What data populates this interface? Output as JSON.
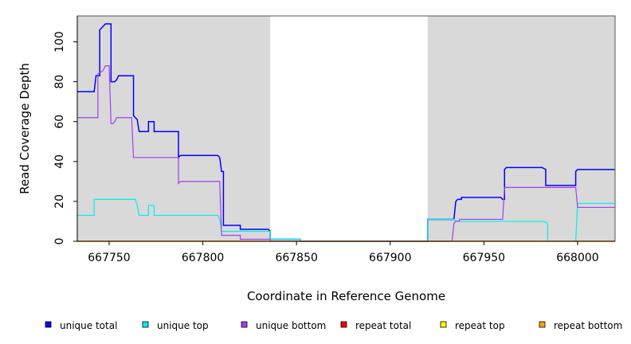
{
  "chart_data": {
    "type": "line",
    "xlabel": "Coordinate in Reference Genome",
    "ylabel": "Read Coverage Depth",
    "xlim": [
      667733,
      668020
    ],
    "ylim": [
      0,
      113
    ],
    "x_ticks": [
      667750,
      667800,
      667850,
      667900,
      667950,
      668000
    ],
    "y_ticks": [
      0,
      20,
      40,
      60,
      80,
      100
    ],
    "shaded_regions": [
      [
        667733,
        667836
      ],
      [
        667920,
        668020
      ]
    ],
    "grid": false,
    "legend_position": "bottom",
    "series": [
      {
        "name": "unique total",
        "color": "#0000ff",
        "points": [
          [
            667733,
            75
          ],
          [
            667742,
            75
          ],
          [
            667743,
            83
          ],
          [
            667745,
            83
          ],
          [
            667745,
            106
          ],
          [
            667746,
            107
          ],
          [
            667747,
            108
          ],
          [
            667748,
            109
          ],
          [
            667751,
            109
          ],
          [
            667751,
            80
          ],
          [
            667753,
            80
          ],
          [
            667754,
            81
          ],
          [
            667755,
            83
          ],
          [
            667763,
            83
          ],
          [
            667763,
            63
          ],
          [
            667765,
            61
          ],
          [
            667766,
            55
          ],
          [
            667771,
            55
          ],
          [
            667771,
            60
          ],
          [
            667774,
            60
          ],
          [
            667774,
            55
          ],
          [
            667787,
            55
          ],
          [
            667787,
            42
          ],
          [
            667788,
            43
          ],
          [
            667808,
            43
          ],
          [
            667809,
            42
          ],
          [
            667810,
            35
          ],
          [
            667811,
            35
          ],
          [
            667811,
            8
          ],
          [
            667820,
            8
          ],
          [
            667820,
            6
          ],
          [
            667835,
            6
          ],
          [
            667836,
            5
          ],
          [
            667836,
            1
          ],
          [
            667852,
            1
          ],
          [
            667852,
            0
          ],
          [
            667920,
            0
          ],
          [
            667920,
            11
          ],
          [
            667934,
            11
          ],
          [
            667935,
            20
          ],
          [
            667936,
            21
          ],
          [
            667938,
            21
          ],
          [
            667938,
            22
          ],
          [
            667959,
            22
          ],
          [
            667960,
            21
          ],
          [
            667961,
            21
          ],
          [
            667961,
            36
          ],
          [
            667962,
            37
          ],
          [
            667981,
            37
          ],
          [
            667983,
            36
          ],
          [
            667983,
            28
          ],
          [
            667999,
            28
          ],
          [
            667999,
            35
          ],
          [
            668000,
            36
          ],
          [
            668020,
            36
          ]
        ]
      },
      {
        "name": "unique top",
        "color": "#00eeee",
        "points": [
          [
            667733,
            13
          ],
          [
            667742,
            13
          ],
          [
            667742,
            21
          ],
          [
            667764,
            21
          ],
          [
            667765,
            18
          ],
          [
            667766,
            13
          ],
          [
            667771,
            13
          ],
          [
            667771,
            18
          ],
          [
            667774,
            18
          ],
          [
            667774,
            13
          ],
          [
            667808,
            13
          ],
          [
            667809,
            11
          ],
          [
            667810,
            5
          ],
          [
            667836,
            5
          ],
          [
            667836,
            1
          ],
          [
            667852,
            1
          ],
          [
            667852,
            0
          ],
          [
            667920,
            0
          ],
          [
            667920,
            11
          ],
          [
            667934,
            11
          ],
          [
            667935,
            10
          ],
          [
            667982,
            10
          ],
          [
            667984,
            9
          ],
          [
            667984,
            0
          ],
          [
            667999,
            0
          ],
          [
            668000,
            19
          ],
          [
            668020,
            19
          ]
        ]
      },
      {
        "name": "unique bottom",
        "color": "#a040f0",
        "points": [
          [
            667733,
            62
          ],
          [
            667744,
            62
          ],
          [
            667744,
            84
          ],
          [
            667746,
            85
          ],
          [
            667747,
            86
          ],
          [
            667748,
            88
          ],
          [
            667750,
            88
          ],
          [
            667751,
            59
          ],
          [
            667752,
            59
          ],
          [
            667753,
            60
          ],
          [
            667754,
            62
          ],
          [
            667762,
            62
          ],
          [
            667763,
            42
          ],
          [
            667787,
            42
          ],
          [
            667787,
            29
          ],
          [
            667788,
            30
          ],
          [
            667809,
            30
          ],
          [
            667810,
            3
          ],
          [
            667820,
            3
          ],
          [
            667820,
            1
          ],
          [
            667836,
            1
          ],
          [
            667836,
            0
          ],
          [
            667933,
            0
          ],
          [
            667934,
            9
          ],
          [
            667935,
            10
          ],
          [
            667937,
            10
          ],
          [
            667937,
            11
          ],
          [
            667960,
            11
          ],
          [
            667961,
            27
          ],
          [
            667999,
            27
          ],
          [
            668000,
            17
          ],
          [
            668020,
            17
          ]
        ]
      },
      {
        "name": "repeat total",
        "color": "#ff0000",
        "points": [
          [
            667733,
            0
          ],
          [
            668020,
            0
          ]
        ]
      },
      {
        "name": "repeat top",
        "color": "#ffff00",
        "points": [
          [
            667733,
            0
          ],
          [
            668020,
            0
          ]
        ]
      },
      {
        "name": "repeat bottom",
        "color": "#ffa500",
        "points": [
          [
            667733,
            0
          ],
          [
            668020,
            0
          ]
        ]
      }
    ]
  }
}
